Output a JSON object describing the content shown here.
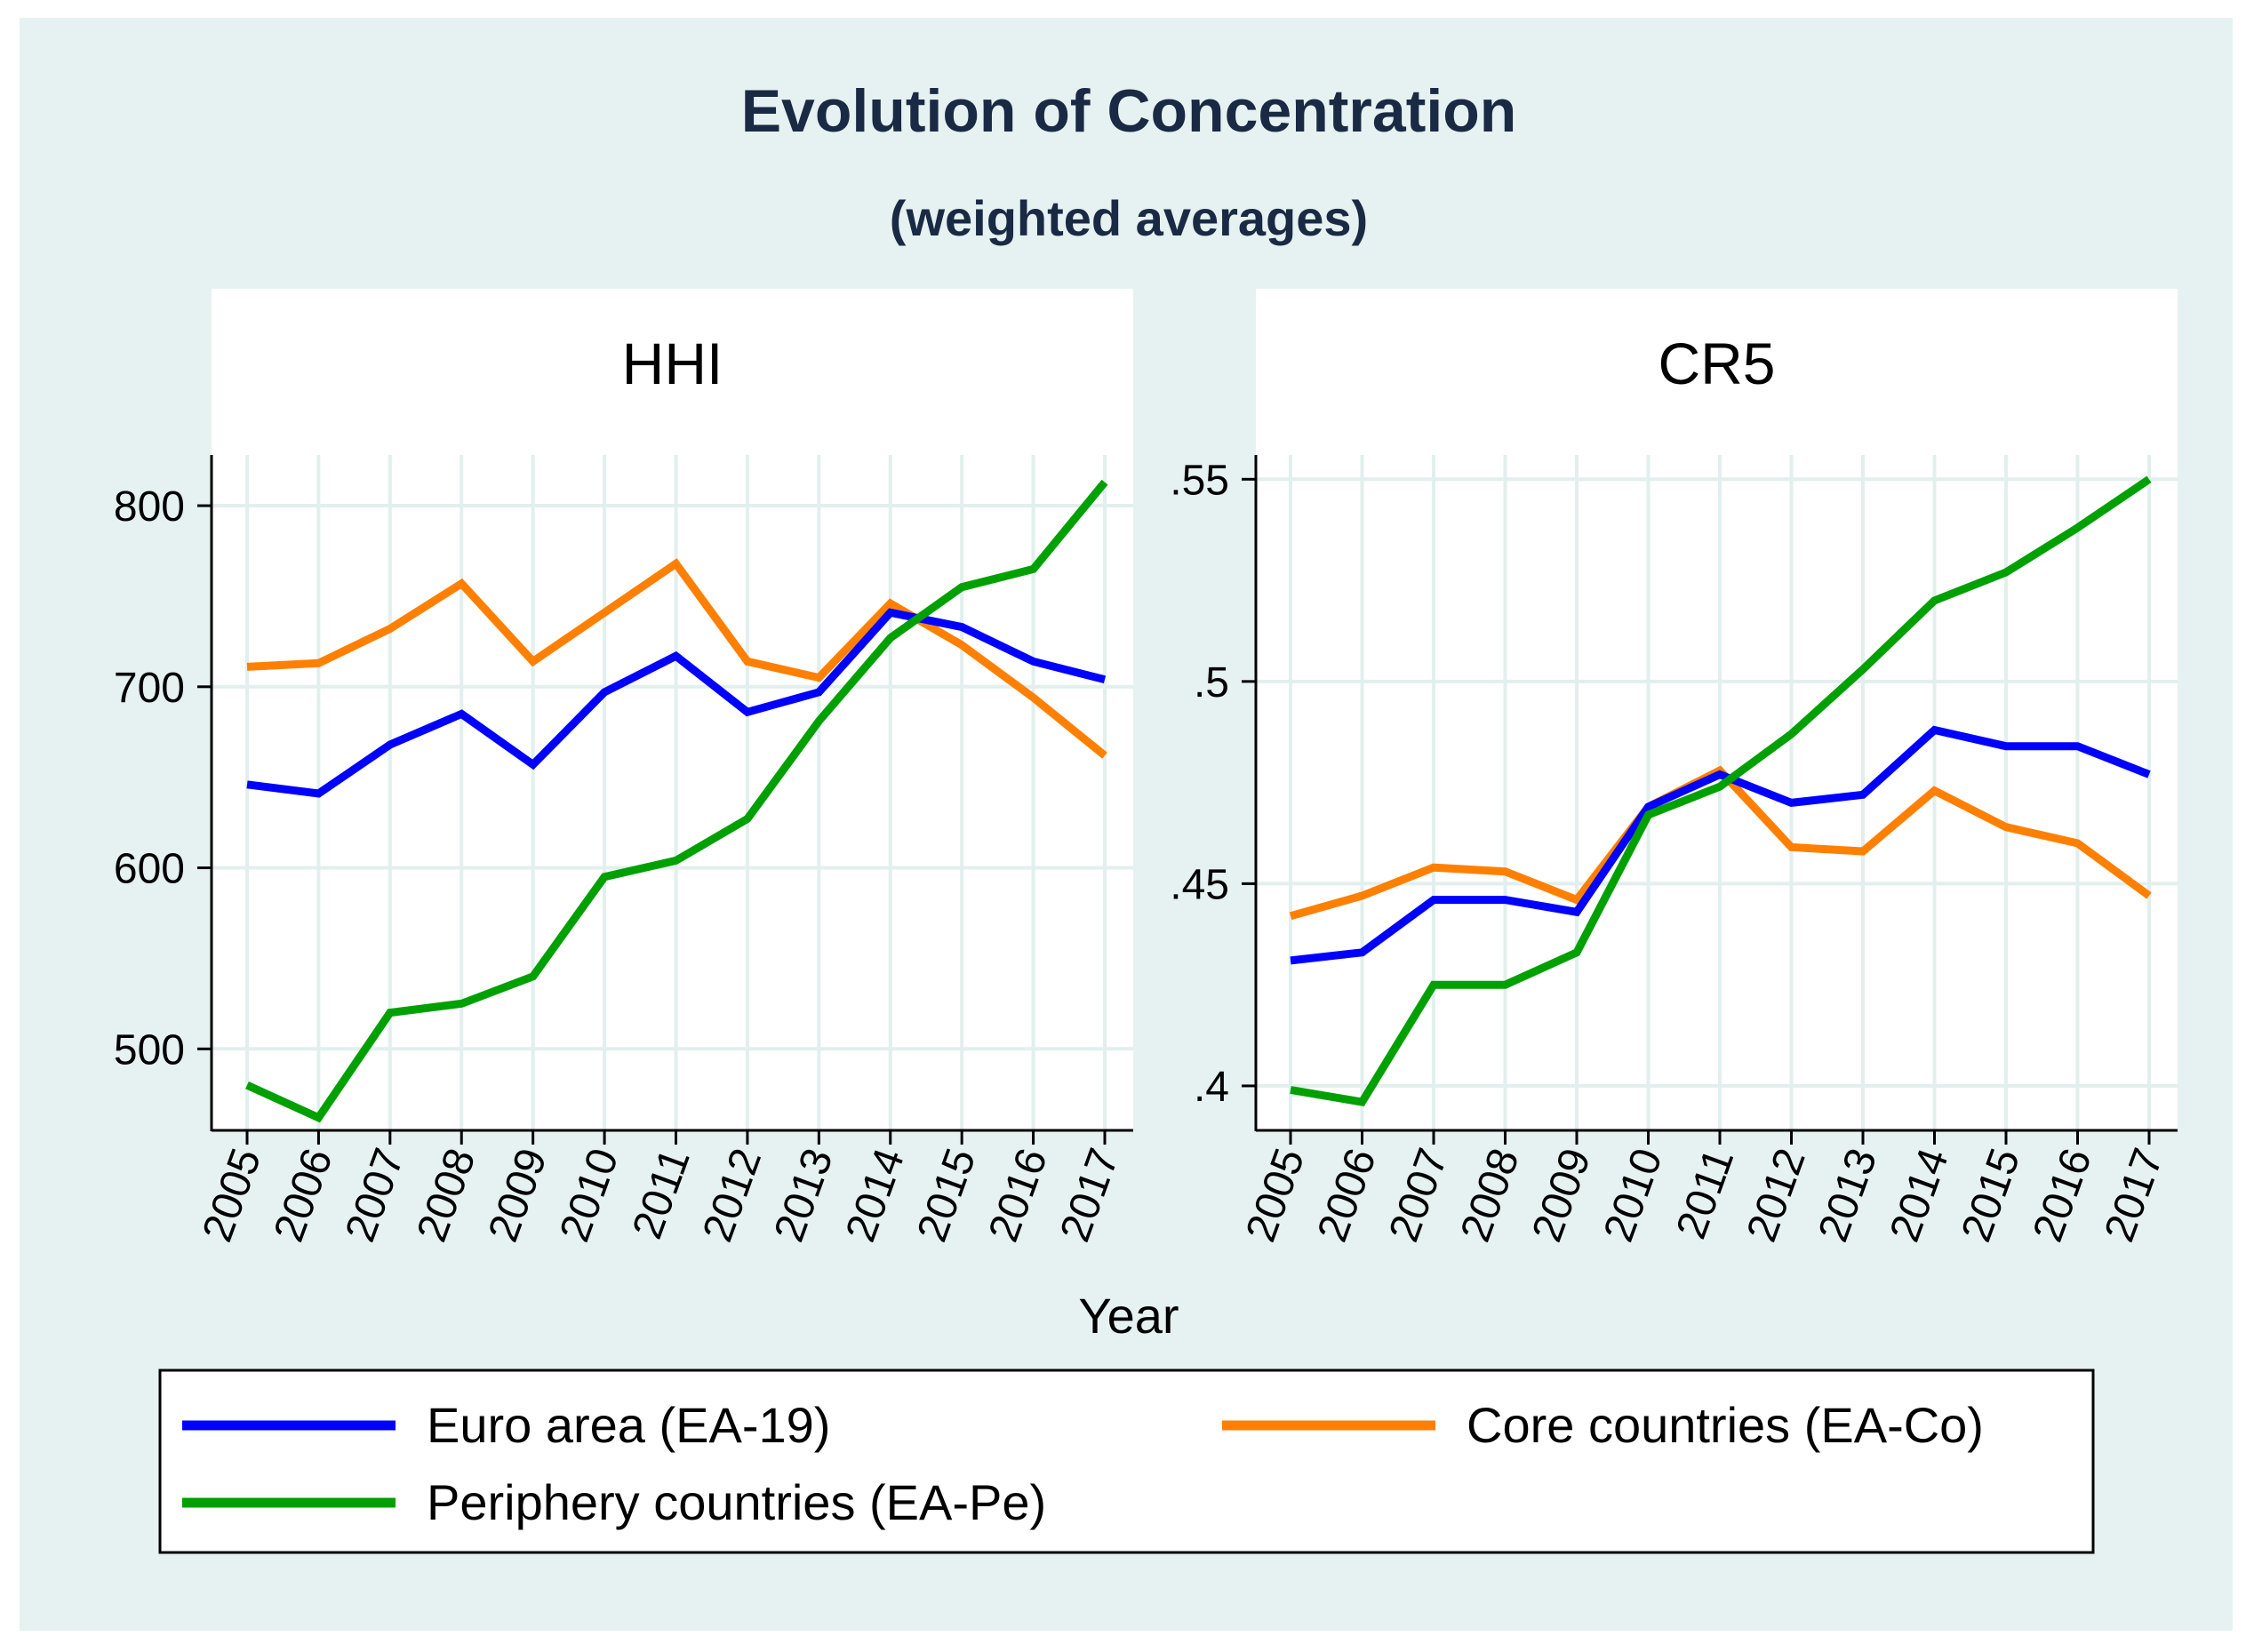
{
  "title": "Evolution of Concentration",
  "subtitle": "(weighted averages)",
  "xlabel": "Year",
  "colors": {
    "background": "#e6f2f1",
    "plot_bg": "#ffffff",
    "grid": "#e2efee",
    "euro": "#0000ff",
    "core": "#ff8000",
    "periphery": "#00a000"
  },
  "legend": [
    {
      "label": "Euro area (EA-19)",
      "color": "#0000ff"
    },
    {
      "label": "Core countries (EA-Co)",
      "color": "#ff8000"
    },
    {
      "label": "Periphery countries (EA-Pe)",
      "color": "#00a000"
    }
  ],
  "chart_data": [
    {
      "type": "line",
      "title": "HHI",
      "xlabel": "Year",
      "ylabel": "",
      "x": [
        "2005",
        "2006",
        "2007",
        "2008",
        "2009",
        "2010",
        "2011",
        "2012",
        "2013",
        "2014",
        "2015",
        "2016",
        "2017"
      ],
      "ylim": [
        455,
        828
      ],
      "yticks": [
        500,
        600,
        700,
        800
      ],
      "ytick_labels": [
        "500",
        "600",
        "700",
        "800"
      ],
      "series": [
        {
          "name": "Euro area (EA-19)",
          "color": "#0000ff",
          "values": [
            646,
            641,
            668,
            685,
            657,
            697,
            717,
            686,
            697,
            741,
            733,
            714,
            704
          ]
        },
        {
          "name": "Core countries (EA-Co)",
          "color": "#ff8000",
          "values": [
            711,
            713,
            732,
            757,
            714,
            741,
            768,
            714,
            705,
            746,
            723,
            694,
            662
          ]
        },
        {
          "name": "Periphery countries (EA-Pe)",
          "color": "#00a000",
          "values": [
            480,
            462,
            520,
            525,
            540,
            595,
            604,
            627,
            681,
            727,
            755,
            765,
            813
          ]
        }
      ]
    },
    {
      "type": "line",
      "title": "CR5",
      "xlabel": "Year",
      "ylabel": "",
      "x": [
        "2005",
        "2006",
        "2007",
        "2008",
        "2009",
        "2010",
        "2011",
        "2012",
        "2013",
        "2014",
        "2015",
        "2016",
        "2017"
      ],
      "ylim": [
        0.389,
        0.556
      ],
      "yticks": [
        0.4,
        0.45,
        0.5,
        0.55
      ],
      "ytick_labels": [
        ".4",
        ".45",
        ".5",
        ".55"
      ],
      "series": [
        {
          "name": "Euro area (EA-19)",
          "color": "#0000ff",
          "values": [
            0.431,
            0.433,
            0.446,
            0.446,
            0.443,
            0.469,
            0.477,
            0.47,
            0.472,
            0.488,
            0.484,
            0.484,
            0.477
          ]
        },
        {
          "name": "Core countries (EA-Co)",
          "color": "#ff8000",
          "values": [
            0.442,
            0.447,
            0.454,
            0.453,
            0.446,
            0.469,
            0.478,
            0.459,
            0.458,
            0.473,
            0.464,
            0.46,
            0.447
          ]
        },
        {
          "name": "Periphery countries (EA-Pe)",
          "color": "#00a000",
          "values": [
            0.399,
            0.396,
            0.425,
            0.425,
            0.433,
            0.467,
            0.474,
            0.487,
            0.503,
            0.52,
            0.527,
            0.538,
            0.55
          ]
        }
      ]
    }
  ]
}
